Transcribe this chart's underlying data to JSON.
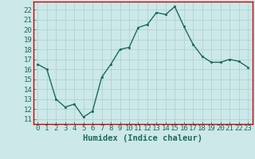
{
  "x": [
    0,
    1,
    2,
    3,
    4,
    5,
    6,
    7,
    8,
    9,
    10,
    11,
    12,
    13,
    14,
    15,
    16,
    17,
    18,
    19,
    20,
    21,
    22,
    23
  ],
  "y": [
    16.5,
    16.0,
    13.0,
    12.2,
    12.5,
    11.2,
    11.8,
    15.2,
    16.5,
    18.0,
    18.2,
    20.2,
    20.5,
    21.7,
    21.5,
    22.3,
    20.3,
    18.5,
    17.3,
    16.7,
    16.7,
    17.0,
    16.8,
    16.2
  ],
  "line_color": "#1a6b5a",
  "marker_color": "#1a6b5a",
  "bg_color": "#cce8e8",
  "grid_color": "#aacfcf",
  "border_color": "#cc0000",
  "xlabel": "Humidex (Indice chaleur)",
  "xlim": [
    -0.5,
    23.5
  ],
  "ylim": [
    10.5,
    22.8
  ],
  "yticks": [
    11,
    12,
    13,
    14,
    15,
    16,
    17,
    18,
    19,
    20,
    21,
    22
  ],
  "xticks": [
    0,
    1,
    2,
    3,
    4,
    5,
    6,
    7,
    8,
    9,
    10,
    11,
    12,
    13,
    14,
    15,
    16,
    17,
    18,
    19,
    20,
    21,
    22,
    23
  ],
  "font_size": 6.5,
  "xlabel_font_size": 7.5
}
